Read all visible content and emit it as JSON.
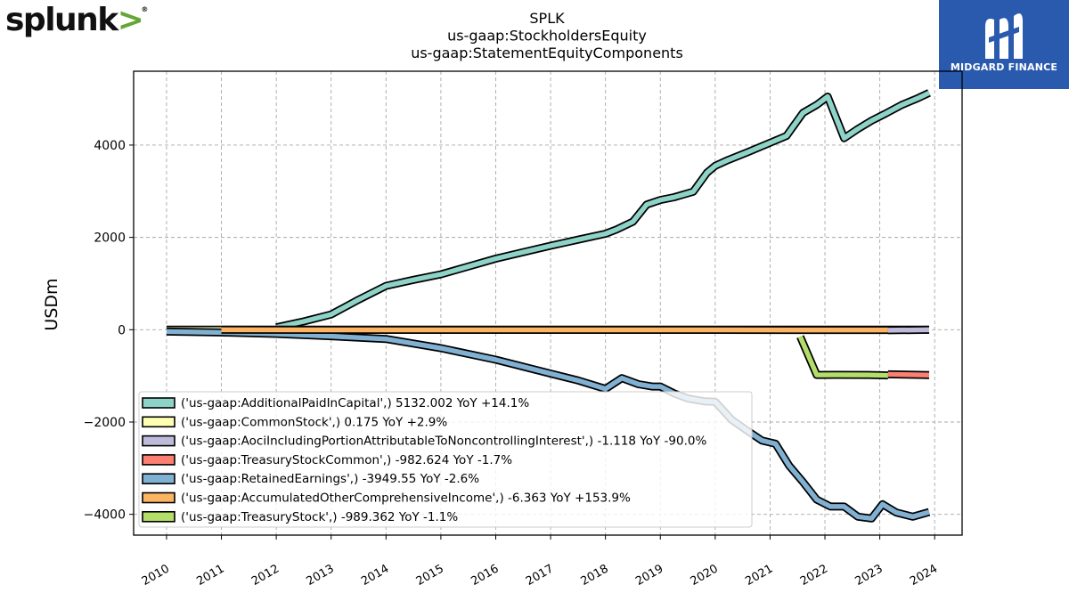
{
  "logos": {
    "left_text": "splunk",
    "left_chevron": ">",
    "left_reg": "®",
    "right_text": "MIDGARD FINANCE",
    "right_icon": "midgard-m-icon"
  },
  "chart_data": {
    "type": "line",
    "title_lines": [
      "SPLK",
      "us-gaap:StockholdersEquity",
      "us-gaap:StatementEquityComponents"
    ],
    "xlabel": "",
    "ylabel": "USDm",
    "xlim": [
      2009.4,
      2024.5
    ],
    "ylim": [
      -4450,
      5600
    ],
    "x_ticks": [
      2010,
      2011,
      2012,
      2013,
      2014,
      2015,
      2016,
      2017,
      2018,
      2019,
      2020,
      2021,
      2022,
      2023,
      2024
    ],
    "x_tick_labels": [
      "2010",
      "2011",
      "2012",
      "2013",
      "2014",
      "2015",
      "2016",
      "2017",
      "2018",
      "2019",
      "2020",
      "2021",
      "2022",
      "2023",
      "2024"
    ],
    "y_ticks": [
      -4000,
      -2000,
      0,
      2000,
      4000
    ],
    "y_tick_labels": [
      "−4000",
      "−2000",
      "0",
      "2000",
      "4000"
    ],
    "grid": true,
    "legend_position": "lower-left",
    "series": [
      {
        "name": "('us-gaap:AdditionalPaidInCapital',) 5132.002 YoY +14.1%",
        "color": "#8dd3c7",
        "x": [
          2012.0,
          2012.5,
          2013.0,
          2013.5,
          2014.0,
          2014.5,
          2015.0,
          2015.5,
          2016.0,
          2016.5,
          2017.0,
          2017.5,
          2018.0,
          2018.2,
          2018.5,
          2018.75,
          2019.0,
          2019.25,
          2019.6,
          2019.85,
          2020.0,
          2020.2,
          2020.6,
          2021.0,
          2021.3,
          2021.6,
          2021.85,
          2022.05,
          2022.35,
          2022.6,
          2022.85,
          2023.1,
          2023.4,
          2023.7,
          2023.9
        ],
        "values": [
          50,
          180,
          330,
          650,
          950,
          1080,
          1200,
          1370,
          1540,
          1680,
          1820,
          1950,
          2080,
          2170,
          2340,
          2710,
          2810,
          2870,
          2990,
          3400,
          3550,
          3660,
          3850,
          4050,
          4200,
          4700,
          4870,
          5050,
          4150,
          4350,
          4530,
          4680,
          4870,
          5020,
          5132
        ]
      },
      {
        "name": "('us-gaap:CommonStock',) 0.175 YoY +2.9%",
        "color": "#ffffb3",
        "x": [
          2010.0,
          2023.9
        ],
        "values": [
          0.1,
          0.175
        ]
      },
      {
        "name": "('us-gaap:AociIncludingPortionAttributableToNoncontrollingInterest',) -1.118 YoY -90.0%",
        "color": "#bebada",
        "x": [
          2023.15,
          2023.9
        ],
        "values": [
          -11.2,
          -1.118
        ]
      },
      {
        "name": "('us-gaap:TreasuryStockCommon',) -982.624 YoY -1.7%",
        "color": "#fb8072",
        "x": [
          2023.15,
          2023.9
        ],
        "values": [
          -966,
          -982.624
        ]
      },
      {
        "name": "('us-gaap:RetainedEarnings',) -3949.55 YoY -2.6%",
        "color": "#80b1d3",
        "x": [
          2010.0,
          2011.0,
          2012.0,
          2013.0,
          2014.0,
          2015.0,
          2016.0,
          2017.0,
          2017.5,
          2018.0,
          2018.3,
          2018.6,
          2018.85,
          2019.0,
          2019.25,
          2019.5,
          2019.8,
          2020.0,
          2020.3,
          2020.6,
          2020.85,
          2021.1,
          2021.35,
          2021.6,
          2021.85,
          2022.1,
          2022.35,
          2022.6,
          2022.85,
          2023.05,
          2023.3,
          2023.6,
          2023.9
        ],
        "values": [
          -40,
          -60,
          -90,
          -140,
          -200,
          -400,
          -650,
          -950,
          -1100,
          -1280,
          -1050,
          -1180,
          -1230,
          -1230,
          -1380,
          -1490,
          -1550,
          -1560,
          -1950,
          -2200,
          -2400,
          -2470,
          -2950,
          -3300,
          -3680,
          -3830,
          -3830,
          -4050,
          -4090,
          -3780,
          -3960,
          -4050,
          -3949.55
        ]
      },
      {
        "name": "('us-gaap:AccumulatedOtherComprehensiveIncome',) -6.363 YoY +153.9%",
        "color": "#fdb462",
        "x": [
          2011.0,
          2015.0,
          2020.0,
          2022.0,
          2023.15
        ],
        "values": [
          -2,
          -4,
          -3,
          -6,
          -6.363
        ]
      },
      {
        "name": "('us-gaap:TreasuryStock',) -989.362 YoY -1.1%",
        "color": "#b3de69",
        "x": [
          2021.55,
          2021.85,
          2022.2,
          2022.8,
          2023.15
        ],
        "values": [
          -150,
          -980,
          -978,
          -980,
          -989.362
        ]
      }
    ]
  }
}
